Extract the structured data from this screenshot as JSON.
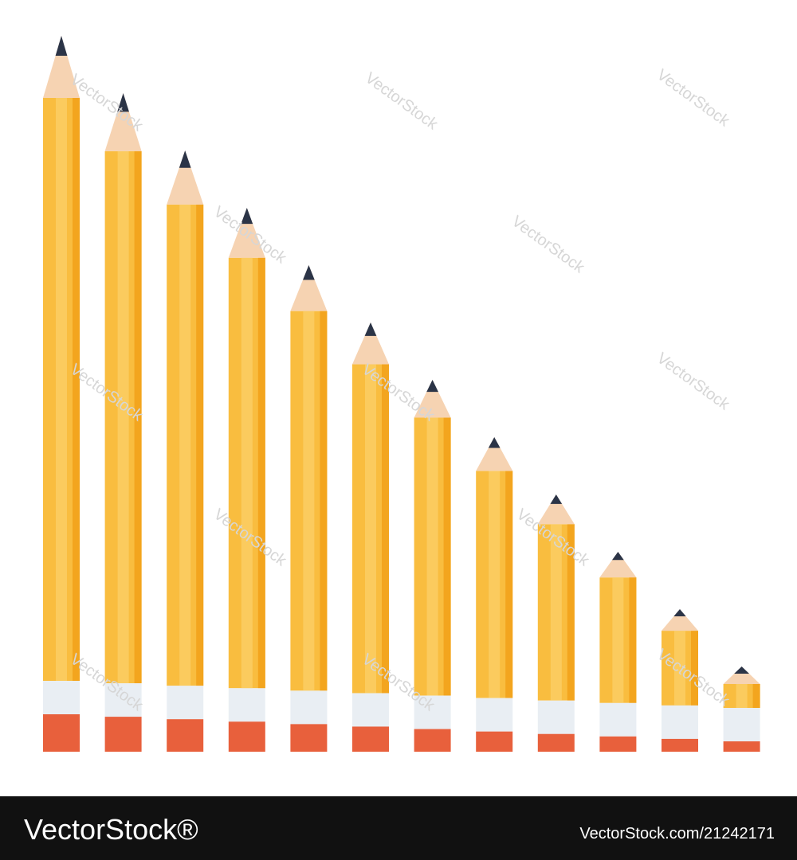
{
  "watermark": "VectorStock",
  "footer": {
    "brand": "VectorStock®",
    "id": "VectorStock.com/21242171"
  }
}
